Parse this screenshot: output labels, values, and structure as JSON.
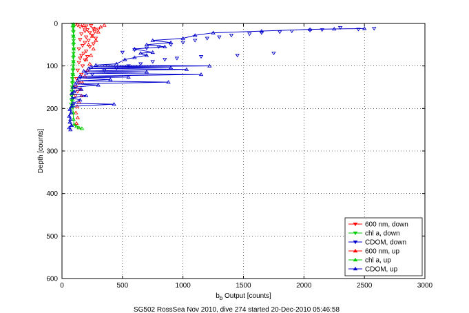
{
  "chart_data": {
    "type": "scatter",
    "title": "",
    "caption": "SG502 RossSea Nov 2010, dive 274 started 20-Dec-2010 05:46:58",
    "xlabel_main": "b",
    "xlabel_sub": "b",
    "xlabel_rest": " Output [counts]",
    "ylabel": "Depth [counts]",
    "xlim": [
      0,
      3000
    ],
    "ylim": [
      0,
      600
    ],
    "y_reversed": true,
    "xticks": [
      0,
      500,
      1000,
      1500,
      2000,
      2500,
      3000
    ],
    "yticks": [
      0,
      100,
      200,
      300,
      400,
      500,
      600
    ],
    "grid": true,
    "legend_position": "bottom-right",
    "series": [
      {
        "name": "600 nm, down",
        "color": "#ff0000",
        "marker": "triangle-down",
        "line": false,
        "points": [
          [
            110,
            2
          ],
          [
            130,
            4
          ],
          [
            170,
            3
          ],
          [
            200,
            6
          ],
          [
            150,
            8
          ],
          [
            240,
            5
          ],
          [
            180,
            10
          ],
          [
            260,
            12
          ],
          [
            210,
            15
          ],
          [
            300,
            14
          ],
          [
            190,
            18
          ],
          [
            270,
            20
          ],
          [
            230,
            22
          ],
          [
            160,
            25
          ],
          [
            250,
            28
          ],
          [
            200,
            32
          ],
          [
            280,
            35
          ],
          [
            150,
            38
          ],
          [
            220,
            40
          ],
          [
            190,
            45
          ],
          [
            260,
            48
          ],
          [
            170,
            52
          ],
          [
            230,
            55
          ],
          [
            140,
            60
          ],
          [
            200,
            65
          ],
          [
            180,
            70
          ],
          [
            160,
            75
          ],
          [
            210,
            78
          ],
          [
            150,
            82
          ],
          [
            190,
            86
          ],
          [
            140,
            92
          ],
          [
            170,
            100
          ],
          [
            130,
            110
          ],
          [
            160,
            120
          ],
          [
            120,
            130
          ],
          [
            140,
            140
          ],
          [
            115,
            150
          ],
          [
            130,
            160
          ],
          [
            110,
            170
          ]
        ]
      },
      {
        "name": "chl a, down",
        "color": "#00cc00",
        "marker": "triangle-down",
        "line": true,
        "points": [
          [
            90,
            2
          ],
          [
            92,
            10
          ],
          [
            95,
            20
          ],
          [
            93,
            30
          ],
          [
            96,
            40
          ],
          [
            94,
            50
          ],
          [
            97,
            60
          ],
          [
            95,
            70
          ],
          [
            93,
            80
          ],
          [
            94,
            90
          ],
          [
            92,
            100
          ],
          [
            90,
            110
          ],
          [
            88,
            120
          ],
          [
            86,
            130
          ],
          [
            85,
            140
          ],
          [
            84,
            150
          ],
          [
            82,
            160
          ],
          [
            80,
            170
          ],
          [
            78,
            180
          ],
          [
            76,
            190
          ],
          [
            75,
            200
          ]
        ]
      },
      {
        "name": "CDOM, down",
        "color": "#0000cc",
        "marker": "triangle-down",
        "line": false,
        "points": [
          [
            2580,
            12
          ],
          [
            2450,
            14
          ],
          [
            2300,
            10
          ],
          [
            2150,
            15
          ],
          [
            2050,
            16
          ],
          [
            1900,
            18
          ],
          [
            1800,
            20
          ],
          [
            1650,
            22
          ],
          [
            1550,
            25
          ],
          [
            1400,
            28
          ],
          [
            1300,
            32
          ],
          [
            1200,
            35
          ],
          [
            1100,
            40
          ],
          [
            1000,
            45
          ],
          [
            900,
            50
          ],
          [
            800,
            55
          ],
          [
            700,
            58
          ],
          [
            600,
            62
          ],
          [
            500,
            68
          ],
          [
            1750,
            70
          ],
          [
            1450,
            75
          ],
          [
            1150,
            78
          ],
          [
            950,
            82
          ],
          [
            850,
            85
          ],
          [
            750,
            90
          ],
          [
            650,
            95
          ],
          [
            550,
            100
          ],
          [
            450,
            105
          ],
          [
            350,
            110
          ],
          [
            250,
            120
          ]
        ]
      },
      {
        "name": "600 nm, up",
        "color": "#ff0000",
        "marker": "triangle-up",
        "line": false,
        "points": [
          [
            140,
            245
          ],
          [
            120,
            235
          ],
          [
            130,
            222
          ],
          [
            115,
            210
          ],
          [
            125,
            195
          ],
          [
            140,
            185
          ],
          [
            160,
            170
          ],
          [
            150,
            155
          ],
          [
            170,
            140
          ],
          [
            190,
            125
          ],
          [
            210,
            110
          ],
          [
            230,
            95
          ],
          [
            200,
            85
          ],
          [
            240,
            75
          ],
          [
            260,
            60
          ],
          [
            220,
            50
          ],
          [
            280,
            40
          ],
          [
            250,
            30
          ],
          [
            300,
            20
          ],
          [
            270,
            12
          ],
          [
            320,
            8
          ],
          [
            350,
            4
          ]
        ]
      },
      {
        "name": "chl a, up",
        "color": "#00cc00",
        "marker": "triangle-up",
        "line": true,
        "points": [
          [
            165,
            247
          ],
          [
            140,
            245
          ],
          [
            120,
            242
          ],
          [
            100,
            238
          ],
          [
            95,
            225
          ],
          [
            92,
            210
          ],
          [
            90,
            195
          ],
          [
            88,
            180
          ],
          [
            87,
            165
          ],
          [
            88,
            150
          ],
          [
            90,
            135
          ],
          [
            92,
            120
          ],
          [
            94,
            105
          ],
          [
            95,
            90
          ],
          [
            96,
            75
          ],
          [
            97,
            60
          ],
          [
            96,
            45
          ],
          [
            95,
            30
          ],
          [
            93,
            15
          ],
          [
            92,
            5
          ],
          [
            95,
            2
          ]
        ]
      },
      {
        "name": "CDOM, up",
        "color": "#0000cc",
        "marker": "triangle-up",
        "line": true,
        "points": [
          [
            70,
            250
          ],
          [
            60,
            245
          ],
          [
            80,
            240
          ],
          [
            65,
            232
          ],
          [
            70,
            225
          ],
          [
            60,
            218
          ],
          [
            75,
            210
          ],
          [
            65,
            202
          ],
          [
            80,
            195
          ],
          [
            430,
            190
          ],
          [
            90,
            188
          ],
          [
            150,
            180
          ],
          [
            85,
            175
          ],
          [
            200,
            170
          ],
          [
            80,
            165
          ],
          [
            100,
            160
          ],
          [
            160,
            155
          ],
          [
            95,
            150
          ],
          [
            300,
            145
          ],
          [
            110,
            142
          ],
          [
            880,
            138
          ],
          [
            130,
            135
          ],
          [
            400,
            132
          ],
          [
            140,
            128
          ],
          [
            550,
            126
          ],
          [
            150,
            124
          ],
          [
            1150,
            120
          ],
          [
            200,
            117
          ],
          [
            700,
            114
          ],
          [
            180,
            112
          ],
          [
            1030,
            108
          ],
          [
            220,
            106
          ],
          [
            900,
            104
          ],
          [
            240,
            102
          ],
          [
            1220,
            100
          ],
          [
            280,
            98
          ],
          [
            450,
            95
          ],
          [
            520,
            85
          ],
          [
            600,
            80
          ],
          [
            700,
            75
          ],
          [
            650,
            70
          ],
          [
            750,
            68
          ],
          [
            600,
            60
          ],
          [
            850,
            55
          ],
          [
            700,
            50
          ],
          [
            900,
            45
          ],
          [
            750,
            40
          ],
          [
            1000,
            35
          ],
          [
            1100,
            28
          ],
          [
            1250,
            22
          ],
          [
            1650,
            18
          ],
          [
            2050,
            14
          ],
          [
            2250,
            13
          ],
          [
            2500,
            12
          ]
        ]
      }
    ]
  }
}
